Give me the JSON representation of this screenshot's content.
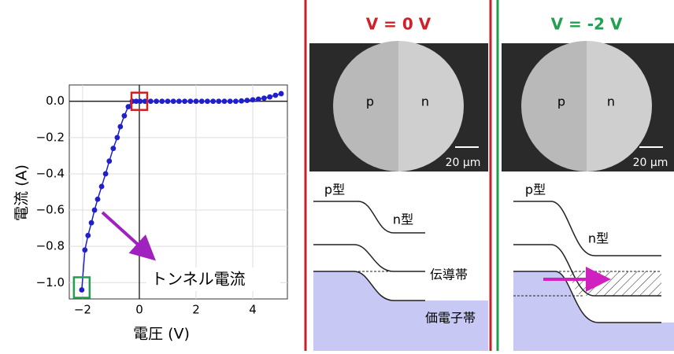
{
  "chart_data": {
    "type": "line",
    "x_label": "電圧 (V)",
    "y_label": "電流 (A)",
    "annotation": "トンネル電流",
    "x": [
      -2.03,
      -1.92,
      -1.81,
      -1.69,
      -1.58,
      -1.47,
      -1.33,
      -1.19,
      -1.06,
      -0.92,
      -0.78,
      -0.67,
      -0.53,
      -0.39,
      -0.25,
      -0.11,
      0.03,
      0.2,
      0.4,
      0.6,
      0.8,
      1.0,
      1.2,
      1.4,
      1.6,
      1.8,
      2.0,
      2.2,
      2.4,
      2.6,
      2.8,
      3.0,
      3.2,
      3.4,
      3.6,
      3.8,
      4.0,
      4.2,
      4.4,
      4.6,
      4.8,
      5.0
    ],
    "series": [
      {
        "color": "#1f1fcc",
        "values": [
          -1.04,
          -0.82,
          -0.74,
          -0.67,
          -0.6,
          -0.54,
          -0.47,
          -0.4,
          -0.33,
          -0.26,
          -0.2,
          -0.14,
          -0.08,
          -0.03,
          0.0,
          0.0,
          0.0,
          0.0,
          0.0,
          0.0,
          0.0,
          0.0,
          0.0,
          0.0,
          0.0,
          0.0,
          0.0,
          0.0,
          0.0,
          0.0,
          0.0,
          0.0,
          0.0,
          0.0,
          0.002,
          0.005,
          0.008,
          0.012,
          0.017,
          0.024,
          0.033,
          0.042
        ]
      }
    ],
    "xlim": [
      -2.47,
      5.22
    ],
    "ylim": [
      -1.09,
      0.09
    ],
    "xticks": [
      {
        "value": -2,
        "label": "−2"
      },
      0,
      2,
      4
    ],
    "yticks": [
      {
        "value": 0,
        "label": "0.0"
      },
      {
        "value": -0.2,
        "label": "−0.2"
      },
      {
        "value": -0.4,
        "label": "−0.4"
      },
      {
        "value": -0.6,
        "label": "−0.6"
      },
      {
        "value": -0.8,
        "label": "−0.8"
      },
      {
        "value": -1.0,
        "label": "−1.0"
      }
    ],
    "grid": true
  },
  "panels": [
    {
      "title": "V = 0 V",
      "p": "p",
      "n": "n",
      "scale": "20 μm",
      "p_type": "p型",
      "n_type": "n型",
      "conduction": "伝導帯",
      "valence": "価電子帯"
    },
    {
      "title": "V = -2 V",
      "p": "p",
      "n": "n",
      "scale": "20 μm",
      "p_type": "p型",
      "n_type": "n型"
    }
  ]
}
